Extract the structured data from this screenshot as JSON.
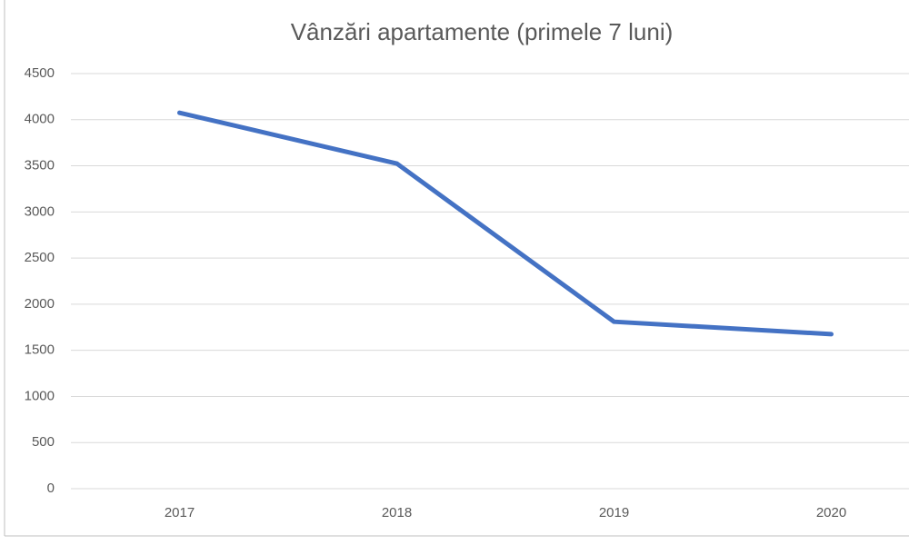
{
  "chart_data": {
    "type": "line",
    "title": "Vânzări apartamente (primele 7 luni)",
    "categories": [
      "2017",
      "2018",
      "2019",
      "2020"
    ],
    "series": [
      {
        "name": "Vânzări",
        "color": "#4472c4",
        "values": [
          4075,
          3525,
          1810,
          1675
        ]
      }
    ],
    "ylim": [
      0,
      4500
    ],
    "yticks": [
      0,
      500,
      1000,
      1500,
      2000,
      2500,
      3000,
      3500,
      4000,
      4500
    ],
    "grid": true
  }
}
